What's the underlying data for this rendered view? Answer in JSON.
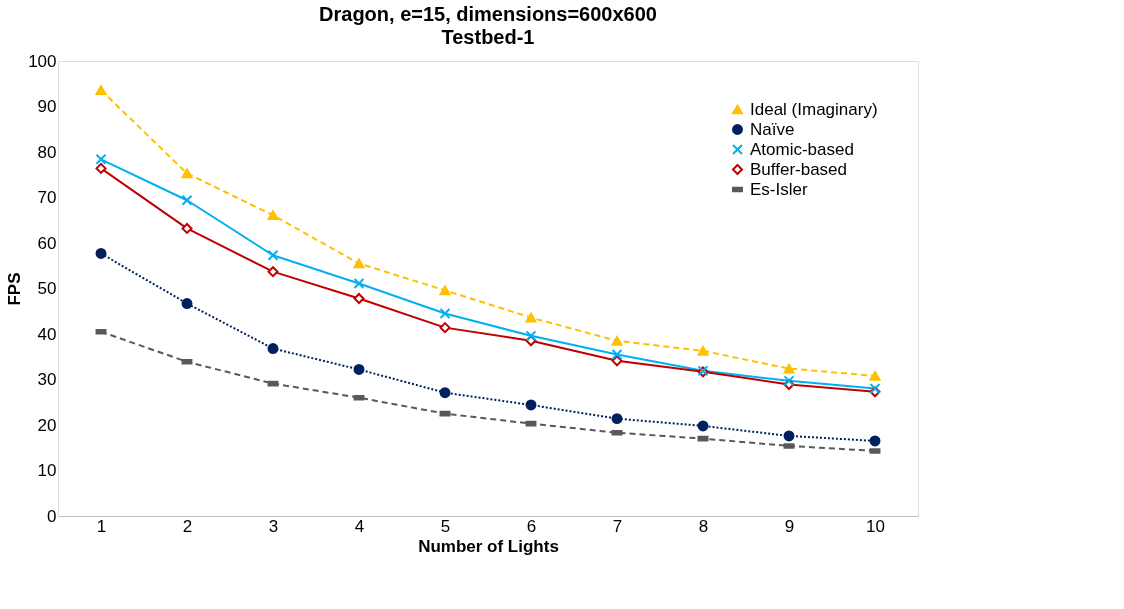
{
  "chart_data": {
    "type": "line",
    "title": "Dragon, e=15, dimensions=600x600",
    "subtitle": "Testbed-1",
    "xlabel": "Number of Lights",
    "ylabel": "FPS",
    "categories": [
      "1",
      "2",
      "3",
      "4",
      "5",
      "6",
      "7",
      "8",
      "9",
      "10"
    ],
    "series": [
      {
        "name": "Ideal (Imaginary)",
        "color": "#ffc000",
        "marker": "triangle",
        "line_style": "dashed",
        "values": [
          93.6,
          75.3,
          66.1,
          55.5,
          49.6,
          43.6,
          38.5,
          36.3,
          32.4,
          30.8
        ]
      },
      {
        "name": "Naïve",
        "color": "#002060",
        "marker": "circle",
        "line_style": "dotted",
        "values": [
          57.7,
          46.7,
          36.8,
          32.2,
          27.1,
          24.4,
          21.4,
          19.8,
          17.6,
          16.5
        ]
      },
      {
        "name": "Atomic-based",
        "color": "#00b0f0",
        "marker": "cross",
        "line_style": "solid",
        "values": [
          78.4,
          69.4,
          57.3,
          51.1,
          44.5,
          39.6,
          35.5,
          31.9,
          29.7,
          28.0
        ]
      },
      {
        "name": "Buffer-based",
        "color": "#c00000",
        "marker": "diamond",
        "line_style": "solid",
        "values": [
          76.4,
          63.2,
          53.7,
          47.8,
          41.4,
          38.5,
          34.1,
          31.7,
          28.9,
          27.3
        ]
      },
      {
        "name": "Es-Isler",
        "color": "#595959",
        "marker": "square",
        "line_style": "dashed",
        "values": [
          40.5,
          33.9,
          29.1,
          26.0,
          22.5,
          20.3,
          18.3,
          17.0,
          15.4,
          14.3
        ]
      }
    ],
    "ylim": [
      0,
      100
    ],
    "yticks": [
      0,
      10,
      20,
      30,
      40,
      50,
      60,
      70,
      80,
      90,
      100
    ],
    "grid": false,
    "legend": "top right"
  }
}
